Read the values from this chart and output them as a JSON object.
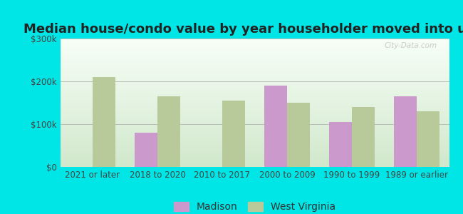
{
  "title": "Median house/condo value by year householder moved into unit",
  "categories": [
    "2021 or later",
    "2018 to 2020",
    "2010 to 2017",
    "2000 to 2009",
    "1990 to 1999",
    "1989 or earlier"
  ],
  "madison_values": [
    null,
    80000,
    null,
    190000,
    105000,
    165000
  ],
  "wv_values": [
    210000,
    165000,
    155000,
    150000,
    140000,
    130000
  ],
  "madison_color": "#cc99cc",
  "wv_color": "#b8c99a",
  "background_outer": "#00e5e5",
  "ylim": [
    0,
    300000
  ],
  "yticks": [
    0,
    100000,
    200000,
    300000
  ],
  "ytick_labels": [
    "$0",
    "$100k",
    "$200k",
    "$300k"
  ],
  "bar_width": 0.35,
  "legend_madison": "Madison",
  "legend_wv": "West Virginia",
  "title_fontsize": 13,
  "axis_label_fontsize": 8.5,
  "legend_fontsize": 10
}
